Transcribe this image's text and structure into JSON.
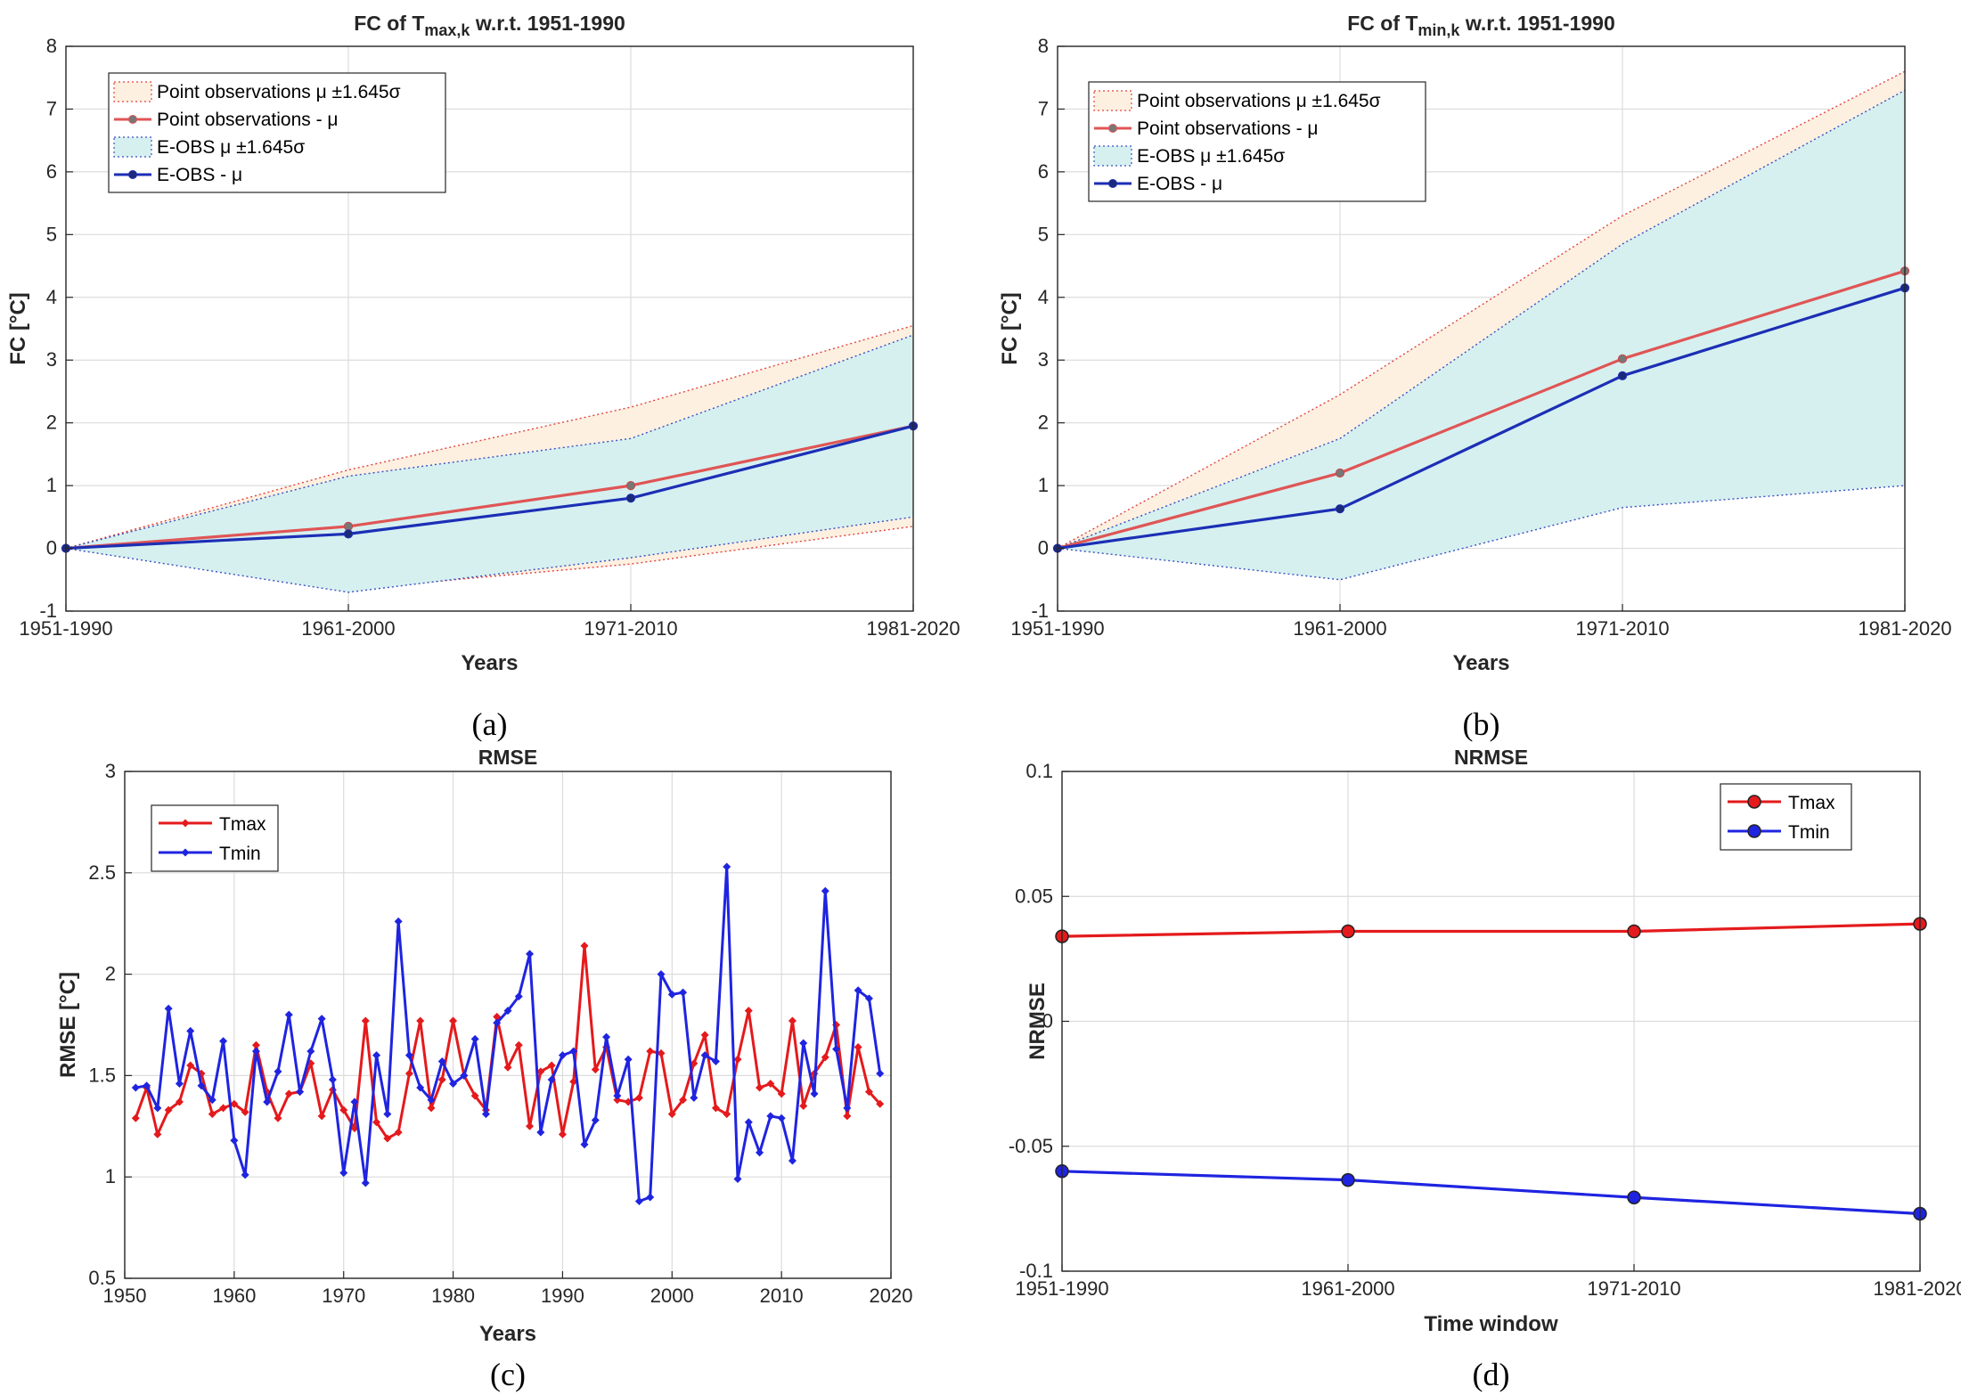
{
  "chart_data": [
    {
      "id": "a",
      "type": "area+line",
      "title": "FC of T",
      "title_sub": "max,k",
      "title_rest": " w.r.t. 1951-1990",
      "xlabel": "Years",
      "ylabel": "FC [°C]",
      "caption": "(a)",
      "categories": [
        "1951-1990",
        "1961-2000",
        "1971-2010",
        "1981-2020"
      ],
      "ylim": [
        -1,
        8
      ],
      "yticks": [
        "-1",
        "0",
        "1",
        "2",
        "3",
        "4",
        "5",
        "6",
        "7",
        "8"
      ],
      "legend": [
        {
          "label": "Point observations μ ±1.645σ"
        },
        {
          "label": "Point observations - μ"
        },
        {
          "label": "E-OBS μ ±1.645σ"
        },
        {
          "label": "E-OBS - μ"
        }
      ],
      "bands": [
        {
          "name": "Point observations",
          "upper": [
            0,
            1.25,
            2.25,
            3.55
          ],
          "lower": [
            0,
            -0.65,
            -0.25,
            0.35
          ],
          "fill": "#fdf0e0",
          "edge": "#e3423f"
        },
        {
          "name": "E-OBS",
          "upper": [
            0,
            1.15,
            1.75,
            3.4
          ],
          "lower": [
            0,
            -0.7,
            -0.15,
            0.5
          ],
          "fill": "#d6f0f0",
          "edge": "#3b4fbf"
        }
      ],
      "series": [
        {
          "name": "Point observations - μ",
          "values": [
            0,
            0.35,
            1.0,
            1.95
          ],
          "color": "#e05555"
        },
        {
          "name": "E-OBS - μ",
          "values": [
            0,
            0.23,
            0.8,
            1.95
          ],
          "color": "#1c2fb5"
        }
      ]
    },
    {
      "id": "b",
      "type": "area+line",
      "title": "FC of T",
      "title_sub": "min,k",
      "title_rest": " w.r.t. 1951-1990",
      "xlabel": "Years",
      "ylabel": "FC [°C]",
      "caption": "(b)",
      "categories": [
        "1951-1990",
        "1961-2000",
        "1971-2010",
        "1981-2020"
      ],
      "ylim": [
        -1,
        8
      ],
      "yticks": [
        "-1",
        "0",
        "1",
        "2",
        "3",
        "4",
        "5",
        "6",
        "7",
        "8"
      ],
      "legend": [
        {
          "label": "Point observations μ ±1.645σ"
        },
        {
          "label": "Point observations - μ"
        },
        {
          "label": "E-OBS μ ±1.645σ"
        },
        {
          "label": "E-OBS - μ"
        }
      ],
      "bands": [
        {
          "name": "Point observations",
          "upper": [
            0,
            2.45,
            5.3,
            7.6
          ],
          "lower": [
            0,
            -0.1,
            0.7,
            1.25
          ],
          "fill": "#fdf0e0",
          "edge": "#e3423f"
        },
        {
          "name": "E-OBS",
          "upper": [
            0,
            1.75,
            4.85,
            7.3
          ],
          "lower": [
            0,
            -0.5,
            0.65,
            1.0
          ],
          "fill": "#d6f0f0",
          "edge": "#3b4fbf"
        }
      ],
      "series": [
        {
          "name": "Point observations - μ",
          "values": [
            0,
            1.2,
            3.02,
            4.42
          ],
          "color": "#e05555"
        },
        {
          "name": "E-OBS - μ",
          "values": [
            0,
            0.63,
            2.75,
            4.15
          ],
          "color": "#1c2fb5"
        }
      ]
    },
    {
      "id": "c",
      "type": "line",
      "title": "RMSE",
      "xlabel": "Years",
      "ylabel": "RMSE [°C]",
      "caption": "(c)",
      "xlim": [
        1950,
        2020
      ],
      "xticks": [
        "1950",
        "1960",
        "1970",
        "1980",
        "1990",
        "2000",
        "2010",
        "2020"
      ],
      "ylim": [
        0.5,
        3
      ],
      "yticks": [
        "0.5",
        "1",
        "1.5",
        "2",
        "2.5",
        "3"
      ],
      "x": [
        1951,
        1952,
        1953,
        1954,
        1955,
        1956,
        1957,
        1958,
        1959,
        1960,
        1961,
        1962,
        1963,
        1964,
        1965,
        1966,
        1967,
        1968,
        1969,
        1970,
        1971,
        1972,
        1973,
        1974,
        1975,
        1976,
        1977,
        1978,
        1979,
        1980,
        1981,
        1982,
        1983,
        1984,
        1985,
        1986,
        1987,
        1988,
        1989,
        1990,
        1991,
        1992,
        1993,
        1994,
        1995,
        1996,
        1997,
        1998,
        1999,
        2000,
        2001,
        2002,
        2003,
        2004,
        2005,
        2006,
        2007,
        2008,
        2009,
        2010,
        2011,
        2012,
        2013,
        2014,
        2015,
        2016,
        2017,
        2018,
        2019
      ],
      "series": [
        {
          "name": "Tmax",
          "color": "#e41a1c",
          "values": [
            1.29,
            1.44,
            1.21,
            1.33,
            1.37,
            1.55,
            1.51,
            1.31,
            1.34,
            1.36,
            1.32,
            1.65,
            1.42,
            1.29,
            1.41,
            1.42,
            1.56,
            1.3,
            1.43,
            1.33,
            1.24,
            1.77,
            1.27,
            1.19,
            1.22,
            1.51,
            1.77,
            1.34,
            1.48,
            1.77,
            1.5,
            1.4,
            1.33,
            1.79,
            1.54,
            1.65,
            1.25,
            1.52,
            1.55,
            1.21,
            1.47,
            2.14,
            1.53,
            1.64,
            1.38,
            1.37,
            1.39,
            1.62,
            1.61,
            1.31,
            1.38,
            1.56,
            1.7,
            1.34,
            1.31,
            1.58,
            1.82,
            1.44,
            1.46,
            1.41,
            1.77,
            1.35,
            1.51,
            1.59,
            1.75,
            1.3,
            1.64,
            1.42,
            1.36
          ]
        },
        {
          "name": "Tmin",
          "color": "#1f24e0",
          "values": [
            1.44,
            1.45,
            1.34,
            1.83,
            1.46,
            1.72,
            1.45,
            1.38,
            1.67,
            1.18,
            1.01,
            1.62,
            1.37,
            1.52,
            1.8,
            1.42,
            1.62,
            1.78,
            1.48,
            1.02,
            1.37,
            0.97,
            1.6,
            1.31,
            2.26,
            1.6,
            1.44,
            1.38,
            1.57,
            1.46,
            1.5,
            1.68,
            1.31,
            1.76,
            1.82,
            1.89,
            2.1,
            1.22,
            1.48,
            1.6,
            1.62,
            1.16,
            1.28,
            1.69,
            1.4,
            1.58,
            0.88,
            0.9,
            2.0,
            1.9,
            1.91,
            1.39,
            1.6,
            1.57,
            2.53,
            0.99,
            1.27,
            1.12,
            1.3,
            1.29,
            1.08,
            1.66,
            1.41,
            2.41,
            1.63,
            1.34,
            1.92,
            1.88,
            1.51
          ]
        }
      ]
    },
    {
      "id": "d",
      "type": "line",
      "title": "NRMSE",
      "xlabel": "Time window",
      "ylabel": "NRMSE",
      "caption": "(d)",
      "categories": [
        "1951-1990",
        "1961-2000",
        "1971-2010",
        "1981-2020"
      ],
      "ylim": [
        -0.1,
        0.1
      ],
      "yticks": [
        "-0.1",
        "-0.05",
        "0",
        "0.05",
        "0.1"
      ],
      "series": [
        {
          "name": "Tmax",
          "values": [
            0.034,
            0.036,
            0.036,
            0.039
          ],
          "color": "#e41a1c"
        },
        {
          "name": "Tmin",
          "values": [
            -0.06,
            -0.0635,
            -0.0705,
            -0.077
          ],
          "color": "#1f24e0"
        }
      ]
    }
  ]
}
